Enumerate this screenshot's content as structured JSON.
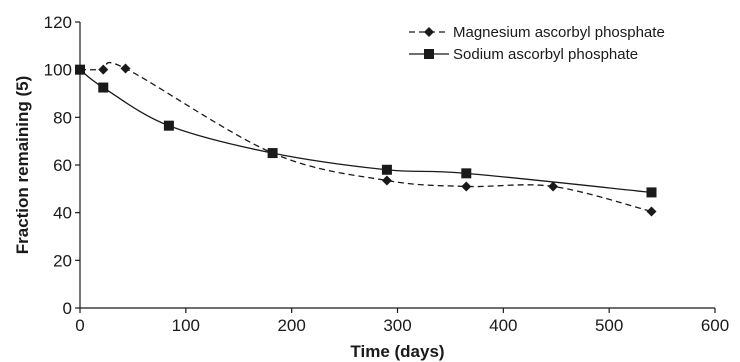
{
  "chart_data": {
    "type": "line",
    "title": "",
    "xlabel": "Time (days)",
    "ylabel": "Fraction remaining (5)",
    "xlim": [
      0,
      600
    ],
    "ylim": [
      0,
      120
    ],
    "xticks": [
      0,
      100,
      200,
      300,
      400,
      500,
      600
    ],
    "yticks": [
      0,
      20,
      40,
      60,
      80,
      100,
      120
    ],
    "grid": false,
    "legend_position": "top-right",
    "series": [
      {
        "name": "Magnesium ascorbyl phosphate",
        "line_style": "dashed",
        "marker": "diamond",
        "color": "#1a1a1a",
        "x": [
          0,
          22,
          43,
          182,
          290,
          365,
          447,
          540
        ],
        "y": [
          100,
          100,
          100.5,
          65,
          53.5,
          51,
          51,
          40.5
        ]
      },
      {
        "name": "Sodium ascorbyl phosphate",
        "line_style": "solid",
        "marker": "square",
        "color": "#1a1a1a",
        "x": [
          0,
          22,
          84,
          182,
          290,
          365,
          540
        ],
        "y": [
          100,
          92.5,
          76.5,
          65,
          58,
          56.5,
          48.5
        ]
      }
    ]
  }
}
